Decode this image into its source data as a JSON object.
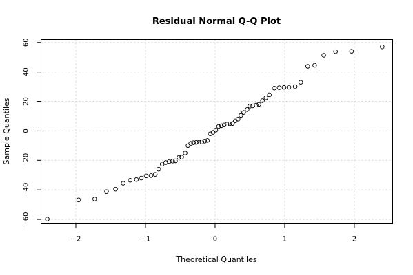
{
  "chart_data": {
    "type": "scatter",
    "title": "Residual Normal Q-Q Plot",
    "xlabel": "Theoretical Quantiles",
    "ylabel": "Sample Quantiles",
    "xlim": [
      -2.5,
      2.55
    ],
    "ylim": [
      -63,
      62
    ],
    "x_ticks": [
      -2,
      -1,
      0,
      1,
      2
    ],
    "x_tick_labels": [
      "-2",
      "-1",
      "0",
      "1",
      "2"
    ],
    "y_ticks": [
      -60,
      -40,
      -20,
      0,
      20,
      40,
      60
    ],
    "y_tick_labels": [
      "-60",
      "-40",
      "-20",
      "0",
      "20",
      "40",
      "60"
    ],
    "grid": true,
    "points": [
      [
        -2.41,
        -59.8
      ],
      [
        -1.96,
        -46.8
      ],
      [
        -1.73,
        -46.2
      ],
      [
        -1.56,
        -41.2
      ],
      [
        -1.43,
        -39.5
      ],
      [
        -1.32,
        -35.5
      ],
      [
        -1.22,
        -33.5
      ],
      [
        -1.13,
        -33.0
      ],
      [
        -1.06,
        -32.0
      ],
      [
        -0.99,
        -30.5
      ],
      [
        -0.92,
        -30.3
      ],
      [
        -0.86,
        -29.5
      ],
      [
        -0.81,
        -26.0
      ],
      [
        -0.76,
        -22.5
      ],
      [
        -0.71,
        -21.5
      ],
      [
        -0.66,
        -20.8
      ],
      [
        -0.61,
        -20.5
      ],
      [
        -0.57,
        -20.3
      ],
      [
        -0.52,
        -18.0
      ],
      [
        -0.48,
        -17.8
      ],
      [
        -0.43,
        -15.0
      ],
      [
        -0.39,
        -10.0
      ],
      [
        -0.35,
        -8.5
      ],
      [
        -0.31,
        -8.0
      ],
      [
        -0.27,
        -7.8
      ],
      [
        -0.23,
        -7.7
      ],
      [
        -0.19,
        -7.5
      ],
      [
        -0.15,
        -7.0
      ],
      [
        -0.11,
        -6.5
      ],
      [
        -0.07,
        -2.0
      ],
      [
        -0.03,
        -1.0
      ],
      [
        0.01,
        0.5
      ],
      [
        0.05,
        3.0
      ],
      [
        0.09,
        3.5
      ],
      [
        0.13,
        4.0
      ],
      [
        0.17,
        4.5
      ],
      [
        0.21,
        4.8
      ],
      [
        0.25,
        5.0
      ],
      [
        0.29,
        6.8
      ],
      [
        0.33,
        8.0
      ],
      [
        0.37,
        10.5
      ],
      [
        0.41,
        12.5
      ],
      [
        0.46,
        14.5
      ],
      [
        0.5,
        16.8
      ],
      [
        0.54,
        17.0
      ],
      [
        0.59,
        17.5
      ],
      [
        0.63,
        18.0
      ],
      [
        0.68,
        20.5
      ],
      [
        0.73,
        22.5
      ],
      [
        0.78,
        24.5
      ],
      [
        0.85,
        29.0
      ],
      [
        0.92,
        29.3
      ],
      [
        0.99,
        29.5
      ],
      [
        1.06,
        29.6
      ],
      [
        1.15,
        30.0
      ],
      [
        1.23,
        33.0
      ],
      [
        1.33,
        43.8
      ],
      [
        1.43,
        44.5
      ],
      [
        1.56,
        51.3
      ],
      [
        1.73,
        53.8
      ],
      [
        1.96,
        54.0
      ],
      [
        2.4,
        57.0
      ]
    ]
  }
}
